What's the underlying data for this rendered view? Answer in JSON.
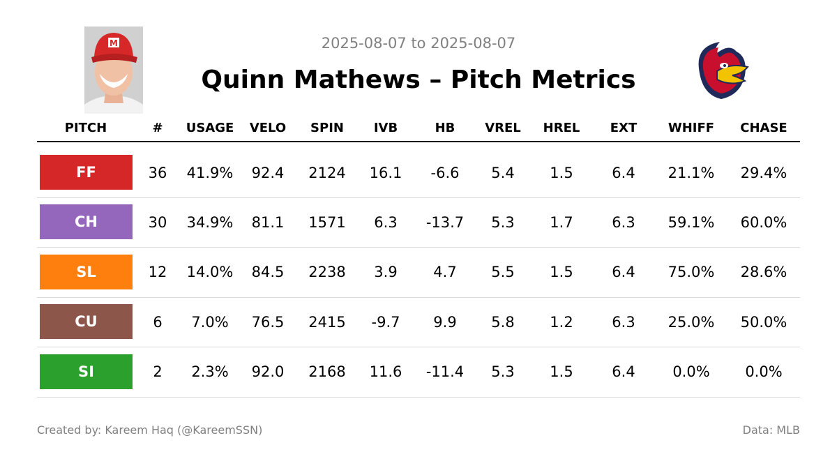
{
  "header": {
    "date_range": "2025-08-07 to 2025-08-07",
    "title": "Quinn Mathews – Pitch Metrics"
  },
  "player_photo_icon": "player-headshot-icon",
  "team_logo_icon": "cardinal-logo-icon",
  "chart_data": {
    "type": "table",
    "columns": [
      "PITCH",
      "#",
      "USAGE",
      "VELO",
      "SPIN",
      "IVB",
      "HB",
      "VREL",
      "HREL",
      "EXT",
      "WHIFF",
      "CHASE"
    ],
    "rows": [
      {
        "pitch": "FF",
        "color": "#d62728",
        "values": [
          "36",
          "41.9%",
          "92.4",
          "2124",
          "16.1",
          "-6.6",
          "5.4",
          "1.5",
          "6.4",
          "21.1%",
          "29.4%"
        ]
      },
      {
        "pitch": "CH",
        "color": "#9467bd",
        "values": [
          "30",
          "34.9%",
          "81.1",
          "1571",
          "6.3",
          "-13.7",
          "5.3",
          "1.7",
          "6.3",
          "59.1%",
          "60.0%"
        ]
      },
      {
        "pitch": "SL",
        "color": "#ff7f0e",
        "values": [
          "12",
          "14.0%",
          "84.5",
          "2238",
          "3.9",
          "4.7",
          "5.5",
          "1.5",
          "6.4",
          "75.0%",
          "28.6%"
        ]
      },
      {
        "pitch": "CU",
        "color": "#8c564b",
        "values": [
          "6",
          "7.0%",
          "76.5",
          "2415",
          "-9.7",
          "9.9",
          "5.8",
          "1.2",
          "6.3",
          "25.0%",
          "50.0%"
        ]
      },
      {
        "pitch": "SI",
        "color": "#2ca02c",
        "values": [
          "2",
          "2.3%",
          "92.0",
          "2168",
          "11.6",
          "-11.4",
          "5.3",
          "1.5",
          "6.4",
          "0.0%",
          "0.0%"
        ]
      }
    ]
  },
  "footer": {
    "credit": "Created by: Kareem Haq (@KareemSSN)",
    "source": "Data: MLB"
  }
}
